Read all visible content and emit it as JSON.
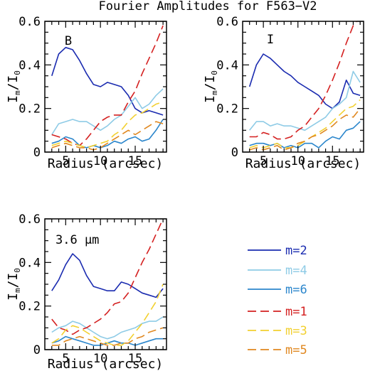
{
  "title": "Fourier Amplitudes for F563−V2",
  "legend": [
    {
      "label": "m=2",
      "color": "#1a2bb0",
      "dash": "solid"
    },
    {
      "label": "m=4",
      "color": "#8ecbe6",
      "dash": "solid"
    },
    {
      "label": "m=6",
      "color": "#2b86cc",
      "dash": "solid"
    },
    {
      "label": "m=1",
      "color": "#d42020",
      "dash": "dashed"
    },
    {
      "label": "m=3",
      "color": "#f2d030",
      "dash": "dashed"
    },
    {
      "label": "m=5",
      "color": "#e08820",
      "dash": "dashed"
    }
  ],
  "chart_data": [
    {
      "type": "line",
      "panel_label": "B",
      "xlabel": "Radius (arcsec)",
      "ylabel": "I_m/I_0",
      "xlim": [
        2,
        19.5
      ],
      "ylim": [
        0,
        0.6
      ],
      "xticks": [
        5,
        10,
        15
      ],
      "yticks": [
        0,
        0.2,
        0.4,
        0.6
      ],
      "series": [
        {
          "name": "m=2",
          "x": [
            3,
            4,
            5,
            6,
            7,
            8,
            9,
            10,
            11,
            12,
            13,
            14,
            15,
            16,
            17,
            18,
            19
          ],
          "y": [
            0.35,
            0.45,
            0.48,
            0.47,
            0.42,
            0.36,
            0.31,
            0.3,
            0.32,
            0.31,
            0.3,
            0.26,
            0.2,
            0.18,
            0.19,
            0.18,
            0.17
          ]
        },
        {
          "name": "m=4",
          "x": [
            3,
            4,
            5,
            6,
            7,
            8,
            9,
            10,
            11,
            12,
            13,
            14,
            15,
            16,
            17,
            18,
            19
          ],
          "y": [
            0.08,
            0.13,
            0.14,
            0.15,
            0.14,
            0.14,
            0.12,
            0.1,
            0.12,
            0.15,
            0.17,
            0.21,
            0.25,
            0.2,
            0.22,
            0.26,
            0.29
          ]
        },
        {
          "name": "m=6",
          "x": [
            3,
            4,
            5,
            6,
            7,
            8,
            9,
            10,
            11,
            12,
            13,
            14,
            15,
            16,
            17,
            18,
            19
          ],
          "y": [
            0.04,
            0.05,
            0.07,
            0.06,
            0.03,
            0.02,
            0.03,
            0.02,
            0.03,
            0.05,
            0.04,
            0.06,
            0.07,
            0.05,
            0.06,
            0.1,
            0.15
          ]
        },
        {
          "name": "m=1",
          "x": [
            3,
            4,
            5,
            6,
            7,
            8,
            9,
            10,
            11,
            12,
            13,
            14,
            15,
            16,
            17,
            18,
            19
          ],
          "y": [
            0.08,
            0.07,
            0.06,
            0.04,
            0.03,
            0.06,
            0.1,
            0.14,
            0.16,
            0.17,
            0.17,
            0.23,
            0.28,
            0.36,
            0.43,
            0.5,
            0.58
          ]
        },
        {
          "name": "m=3",
          "x": [
            3,
            4,
            5,
            6,
            7,
            8,
            9,
            10,
            11,
            12,
            13,
            14,
            15,
            16,
            17,
            18,
            19
          ],
          "y": [
            0.03,
            0.04,
            0.05,
            0.04,
            0.03,
            0.02,
            0.03,
            0.04,
            0.05,
            0.08,
            0.1,
            0.14,
            0.17,
            0.18,
            0.2,
            0.22,
            0.23
          ]
        },
        {
          "name": "m=5",
          "x": [
            3,
            4,
            5,
            6,
            7,
            8,
            9,
            10,
            11,
            12,
            13,
            14,
            15,
            16,
            17,
            18,
            19
          ],
          "y": [
            0.02,
            0.03,
            0.04,
            0.03,
            0.02,
            0.02,
            0.01,
            0.02,
            0.04,
            0.06,
            0.08,
            0.1,
            0.08,
            0.1,
            0.12,
            0.14,
            0.13
          ]
        }
      ]
    },
    {
      "type": "line",
      "panel_label": "I",
      "xlabel": "Radius (arcsec)",
      "ylabel": "I_m/I_0",
      "xlim": [
        2,
        19.5
      ],
      "ylim": [
        0,
        0.6
      ],
      "xticks": [
        5,
        10,
        15
      ],
      "yticks": [
        0,
        0.2,
        0.4,
        0.6
      ],
      "series": [
        {
          "name": "m=2",
          "x": [
            3,
            4,
            5,
            6,
            7,
            8,
            9,
            10,
            11,
            12,
            13,
            14,
            15,
            16,
            17,
            18,
            19
          ],
          "y": [
            0.3,
            0.4,
            0.45,
            0.43,
            0.4,
            0.37,
            0.35,
            0.32,
            0.3,
            0.28,
            0.26,
            0.22,
            0.2,
            0.23,
            0.33,
            0.27,
            0.26
          ]
        },
        {
          "name": "m=4",
          "x": [
            3,
            4,
            5,
            6,
            7,
            8,
            9,
            10,
            11,
            12,
            13,
            14,
            15,
            16,
            17,
            18,
            19
          ],
          "y": [
            0.1,
            0.14,
            0.14,
            0.12,
            0.13,
            0.12,
            0.12,
            0.11,
            0.1,
            0.12,
            0.14,
            0.16,
            0.2,
            0.22,
            0.25,
            0.37,
            0.32
          ]
        },
        {
          "name": "m=6",
          "x": [
            3,
            4,
            5,
            6,
            7,
            8,
            9,
            10,
            11,
            12,
            13,
            14,
            15,
            16,
            17,
            18,
            19
          ],
          "y": [
            0.03,
            0.04,
            0.04,
            0.03,
            0.04,
            0.02,
            0.03,
            0.02,
            0.04,
            0.04,
            0.02,
            0.05,
            0.07,
            0.06,
            0.1,
            0.11,
            0.14
          ]
        },
        {
          "name": "m=1",
          "x": [
            3,
            4,
            5,
            6,
            7,
            8,
            9,
            10,
            11,
            12,
            13,
            14,
            15,
            16,
            17,
            18,
            19
          ],
          "y": [
            0.07,
            0.07,
            0.09,
            0.08,
            0.06,
            0.06,
            0.07,
            0.1,
            0.12,
            0.16,
            0.2,
            0.26,
            0.33,
            0.41,
            0.5,
            0.58,
            0.62
          ]
        },
        {
          "name": "m=3",
          "x": [
            3,
            4,
            5,
            6,
            7,
            8,
            9,
            10,
            11,
            12,
            13,
            14,
            15,
            16,
            17,
            18,
            19
          ],
          "y": [
            0.02,
            0.03,
            0.02,
            0.03,
            0.04,
            0.02,
            0.02,
            0.03,
            0.05,
            0.07,
            0.09,
            0.11,
            0.14,
            0.17,
            0.2,
            0.21,
            0.24
          ]
        },
        {
          "name": "m=5",
          "x": [
            3,
            4,
            5,
            6,
            7,
            8,
            9,
            10,
            11,
            12,
            13,
            14,
            15,
            16,
            17,
            18,
            19
          ],
          "y": [
            0.01,
            0.02,
            0.01,
            0.02,
            0.03,
            0.01,
            0.02,
            0.04,
            0.05,
            0.07,
            0.08,
            0.1,
            0.12,
            0.15,
            0.17,
            0.16,
            0.2
          ]
        }
      ]
    },
    {
      "type": "line",
      "panel_label": "3.6 μm",
      "xlabel": "Radius (arcsec)",
      "ylabel": "I_m/I_0",
      "xlim": [
        2,
        19.5
      ],
      "ylim": [
        0,
        0.6
      ],
      "xticks": [
        5,
        10,
        15
      ],
      "yticks": [
        0,
        0.2,
        0.4,
        0.6
      ],
      "series": [
        {
          "name": "m=2",
          "x": [
            3,
            4,
            5,
            6,
            7,
            8,
            9,
            10,
            11,
            12,
            13,
            14,
            15,
            16,
            17,
            18,
            19
          ],
          "y": [
            0.27,
            0.32,
            0.39,
            0.44,
            0.41,
            0.34,
            0.29,
            0.28,
            0.27,
            0.27,
            0.31,
            0.3,
            0.28,
            0.26,
            0.25,
            0.24,
            0.28
          ]
        },
        {
          "name": "m=4",
          "x": [
            3,
            4,
            5,
            6,
            7,
            8,
            9,
            10,
            11,
            12,
            13,
            14,
            15,
            16,
            17,
            18,
            19
          ],
          "y": [
            0.08,
            0.1,
            0.11,
            0.13,
            0.12,
            0.1,
            0.08,
            0.06,
            0.05,
            0.06,
            0.08,
            0.09,
            0.1,
            0.12,
            0.13,
            0.13,
            0.15
          ]
        },
        {
          "name": "m=6",
          "x": [
            3,
            4,
            5,
            6,
            7,
            8,
            9,
            10,
            11,
            12,
            13,
            14,
            15,
            16,
            17,
            18,
            19
          ],
          "y": [
            0.03,
            0.04,
            0.06,
            0.05,
            0.04,
            0.03,
            0.02,
            0.02,
            0.03,
            0.04,
            0.03,
            0.03,
            0.02,
            0.03,
            0.04,
            0.05,
            0.05
          ]
        },
        {
          "name": "m=1",
          "x": [
            3,
            4,
            5,
            6,
            7,
            8,
            9,
            10,
            11,
            12,
            13,
            14,
            15,
            16,
            17,
            18,
            19
          ],
          "y": [
            0.14,
            0.1,
            0.09,
            0.07,
            0.09,
            0.1,
            0.12,
            0.14,
            0.17,
            0.21,
            0.22,
            0.26,
            0.33,
            0.4,
            0.46,
            0.53,
            0.6
          ]
        },
        {
          "name": "m=3",
          "x": [
            3,
            4,
            5,
            6,
            7,
            8,
            9,
            10,
            11,
            12,
            13,
            14,
            15,
            16,
            17,
            18,
            19
          ],
          "y": [
            0.03,
            0.05,
            0.09,
            0.11,
            0.1,
            0.08,
            0.06,
            0.04,
            0.03,
            0.02,
            0.02,
            0.04,
            0.08,
            0.12,
            0.17,
            0.22,
            0.3
          ]
        },
        {
          "name": "m=5",
          "x": [
            3,
            4,
            5,
            6,
            7,
            8,
            9,
            10,
            11,
            12,
            13,
            14,
            15,
            16,
            17,
            18,
            19
          ],
          "y": [
            0.02,
            0.02,
            0.04,
            0.05,
            0.06,
            0.05,
            0.04,
            0.03,
            0.02,
            0.02,
            0.03,
            0.03,
            0.05,
            0.06,
            0.08,
            0.09,
            0.1
          ]
        }
      ]
    }
  ]
}
